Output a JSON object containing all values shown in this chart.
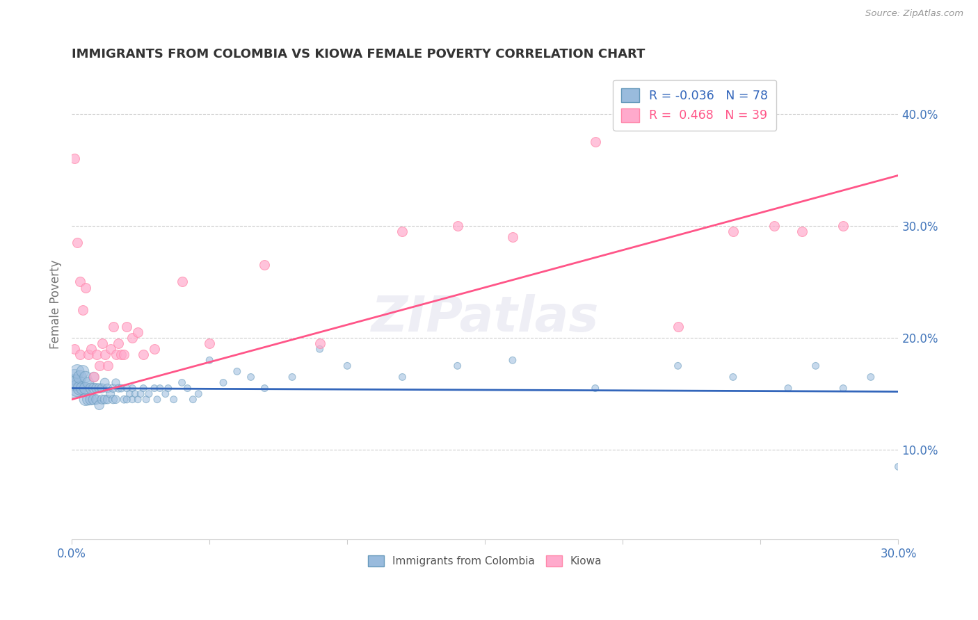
{
  "title": "IMMIGRANTS FROM COLOMBIA VS KIOWA FEMALE POVERTY CORRELATION CHART",
  "source": "Source: ZipAtlas.com",
  "ylabel": "Female Poverty",
  "xlim": [
    0.0,
    0.3
  ],
  "ylim": [
    0.02,
    0.44
  ],
  "x_tick_positions": [
    0.0,
    0.05,
    0.1,
    0.15,
    0.2,
    0.25,
    0.3
  ],
  "x_tick_labels": [
    "0.0%",
    "",
    "",
    "",
    "",
    "",
    "30.0%"
  ],
  "ytick_positions": [
    0.1,
    0.2,
    0.3,
    0.4
  ],
  "ytick_labels": [
    "10.0%",
    "20.0%",
    "30.0%",
    "40.0%"
  ],
  "blue_color": "#99BBDD",
  "pink_color": "#FFAACC",
  "blue_edge_color": "#6699BB",
  "pink_edge_color": "#FF88AA",
  "blue_line_color": "#3366BB",
  "pink_line_color": "#FF5588",
  "text_color": "#4477BB",
  "blue_R": -0.036,
  "blue_N": 78,
  "pink_R": 0.468,
  "pink_N": 39,
  "watermark": "ZIPatlas",
  "legend_R_blue": "R = -0.036   N = 78",
  "legend_R_pink": "R =  0.468   N = 39",
  "legend_label_blue": "Immigrants from Colombia",
  "legend_label_pink": "Kiowa",
  "blue_line_y0": 0.155,
  "blue_line_y1": 0.152,
  "pink_line_y0": 0.145,
  "pink_line_y1": 0.345,
  "blue_points_x": [
    0.001,
    0.001,
    0.001,
    0.002,
    0.002,
    0.002,
    0.003,
    0.003,
    0.004,
    0.004,
    0.005,
    0.005,
    0.005,
    0.006,
    0.006,
    0.007,
    0.007,
    0.008,
    0.008,
    0.008,
    0.009,
    0.009,
    0.01,
    0.01,
    0.011,
    0.011,
    0.012,
    0.012,
    0.013,
    0.013,
    0.014,
    0.015,
    0.015,
    0.016,
    0.016,
    0.017,
    0.018,
    0.019,
    0.02,
    0.02,
    0.021,
    0.022,
    0.022,
    0.023,
    0.024,
    0.025,
    0.026,
    0.027,
    0.028,
    0.03,
    0.031,
    0.032,
    0.034,
    0.035,
    0.037,
    0.04,
    0.042,
    0.044,
    0.046,
    0.05,
    0.055,
    0.06,
    0.065,
    0.07,
    0.08,
    0.09,
    0.1,
    0.12,
    0.14,
    0.16,
    0.19,
    0.22,
    0.24,
    0.26,
    0.27,
    0.28,
    0.29,
    0.3
  ],
  "blue_points_y": [
    0.155,
    0.16,
    0.165,
    0.155,
    0.16,
    0.17,
    0.155,
    0.165,
    0.155,
    0.17,
    0.145,
    0.155,
    0.165,
    0.145,
    0.16,
    0.145,
    0.155,
    0.145,
    0.155,
    0.165,
    0.145,
    0.155,
    0.14,
    0.155,
    0.145,
    0.155,
    0.145,
    0.16,
    0.145,
    0.155,
    0.15,
    0.145,
    0.155,
    0.145,
    0.16,
    0.155,
    0.155,
    0.145,
    0.145,
    0.155,
    0.15,
    0.145,
    0.155,
    0.15,
    0.145,
    0.15,
    0.155,
    0.145,
    0.15,
    0.155,
    0.145,
    0.155,
    0.15,
    0.155,
    0.145,
    0.16,
    0.155,
    0.145,
    0.15,
    0.18,
    0.16,
    0.17,
    0.165,
    0.155,
    0.165,
    0.19,
    0.175,
    0.165,
    0.175,
    0.18,
    0.155,
    0.175,
    0.165,
    0.155,
    0.175,
    0.155,
    0.165,
    0.085
  ],
  "blue_points_size": [
    400,
    300,
    250,
    300,
    250,
    200,
    200,
    180,
    180,
    160,
    160,
    150,
    140,
    140,
    130,
    130,
    120,
    120,
    110,
    105,
    100,
    100,
    95,
    95,
    90,
    90,
    85,
    85,
    80,
    80,
    75,
    75,
    70,
    70,
    65,
    65,
    60,
    60,
    55,
    55,
    50,
    50,
    50,
    50,
    50,
    50,
    50,
    50,
    50,
    50,
    50,
    50,
    50,
    50,
    50,
    50,
    50,
    50,
    50,
    50,
    50,
    50,
    50,
    50,
    50,
    50,
    50,
    50,
    50,
    50,
    50,
    50,
    50,
    50,
    50,
    50,
    50,
    50
  ],
  "pink_points_x": [
    0.001,
    0.001,
    0.002,
    0.003,
    0.003,
    0.004,
    0.005,
    0.006,
    0.007,
    0.008,
    0.009,
    0.01,
    0.011,
    0.012,
    0.013,
    0.014,
    0.015,
    0.016,
    0.017,
    0.018,
    0.019,
    0.02,
    0.022,
    0.024,
    0.026,
    0.03,
    0.04,
    0.05,
    0.07,
    0.09,
    0.12,
    0.14,
    0.16,
    0.19,
    0.22,
    0.24,
    0.255,
    0.265,
    0.28
  ],
  "pink_points_y": [
    0.36,
    0.19,
    0.285,
    0.25,
    0.185,
    0.225,
    0.245,
    0.185,
    0.19,
    0.165,
    0.185,
    0.175,
    0.195,
    0.185,
    0.175,
    0.19,
    0.21,
    0.185,
    0.195,
    0.185,
    0.185,
    0.21,
    0.2,
    0.205,
    0.185,
    0.19,
    0.25,
    0.195,
    0.265,
    0.195,
    0.295,
    0.3,
    0.29,
    0.375,
    0.21,
    0.295,
    0.3,
    0.295,
    0.3
  ]
}
